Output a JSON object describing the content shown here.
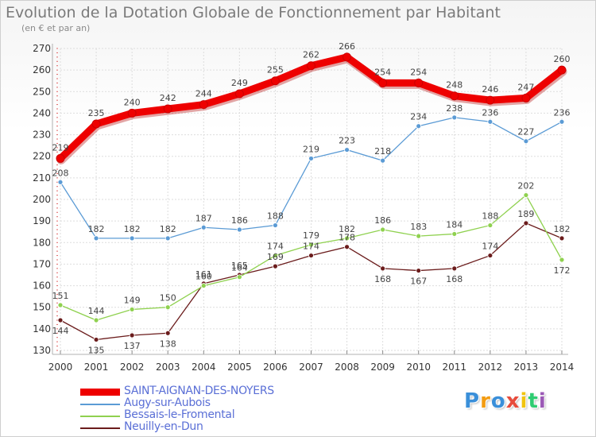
{
  "title": "Evolution de la Dotation Globale de Fonctionnement par Habitant",
  "subtitle": "(en € et par an)",
  "logo": {
    "text": "Proxiti",
    "letters": [
      "P",
      "r",
      "o",
      "x",
      "i",
      "t",
      "i"
    ],
    "colors": [
      "#3a8fd9",
      "#f39c12",
      "#3a8fd9",
      "#e74c3c",
      "#f1c40f",
      "#2ecc71",
      "#9b59b6"
    ]
  },
  "chart_data": {
    "type": "line",
    "title": "Evolution de la Dotation Globale de Fonctionnement par Habitant",
    "subtitle": "(en € et par an)",
    "x": [
      "2000",
      "2001",
      "2002",
      "2003",
      "2004",
      "2005",
      "2006",
      "2007",
      "2008",
      "2009",
      "2010",
      "2011",
      "2012",
      "2013",
      "2014"
    ],
    "yticks": [
      "130",
      "140",
      "150",
      "160",
      "170",
      "180",
      "190",
      "200",
      "210",
      "220",
      "230",
      "240",
      "250",
      "260",
      "270"
    ],
    "ylim": [
      130,
      270
    ],
    "grid": true,
    "series": [
      {
        "name": "SAINT-AIGNAN-DES-NOYERS",
        "color": "#ee0000",
        "values": [
          219,
          235,
          240,
          242,
          244,
          249,
          255,
          262,
          266,
          254,
          254,
          248,
          246,
          247,
          260
        ]
      },
      {
        "name": "Augy-sur-Aubois",
        "color": "#5b9bd5",
        "values": [
          208,
          182,
          182,
          182,
          187,
          186,
          188,
          219,
          223,
          218,
          234,
          238,
          236,
          227,
          236
        ]
      },
      {
        "name": "Bessais-le-Fromental",
        "color": "#8fd14f",
        "values": [
          151,
          144,
          149,
          150,
          160,
          164,
          174,
          179,
          182,
          186,
          183,
          184,
          188,
          202,
          172
        ]
      },
      {
        "name": "Neuilly-en-Dun",
        "color": "#6b1c1c",
        "values": [
          144,
          135,
          137,
          138,
          161,
          165,
          169,
          174,
          178,
          168,
          167,
          168,
          174,
          189,
          182
        ]
      }
    ]
  }
}
